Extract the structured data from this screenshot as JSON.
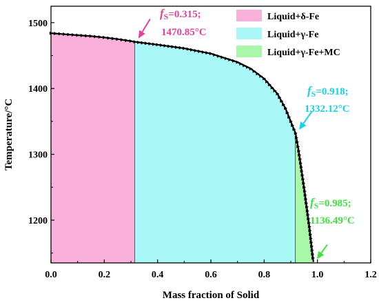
{
  "chart_data": {
    "type": "area",
    "xlabel": "Mass fraction of Solid",
    "ylabel": "Temperature/°C",
    "xlim": [
      0.0,
      1.2
    ],
    "ylim": [
      1135,
      1525
    ],
    "xticks": [
      0.0,
      0.2,
      0.4,
      0.6,
      0.8,
      1.0,
      1.2
    ],
    "xtick_labels": [
      "0.0",
      "0.2",
      "0.4",
      "0.6",
      "0.8",
      "1.0",
      "1.2"
    ],
    "yticks": [
      1200,
      1300,
      1400,
      1500
    ],
    "ytick_labels": [
      "1200",
      "1300",
      "1400",
      "1500"
    ],
    "grid": false,
    "legend_position": "top-right",
    "series": [
      {
        "name": "Liquid+δ-Fe",
        "color": "#f9b0da",
        "x": [
          0.0,
          0.05,
          0.1,
          0.15,
          0.2,
          0.25,
          0.3,
          0.315
        ],
        "y": [
          1484,
          1482.5,
          1481,
          1479.5,
          1477.5,
          1475,
          1472,
          1470.85
        ]
      },
      {
        "name": "Liquid+γ-Fe",
        "color": "#aaf7f7",
        "x": [
          0.315,
          0.4,
          0.5,
          0.6,
          0.7,
          0.75,
          0.8,
          0.85,
          0.88,
          0.9,
          0.918
        ],
        "y": [
          1470.85,
          1466.5,
          1461,
          1453,
          1440,
          1430,
          1415,
          1392,
          1370,
          1350,
          1332.12
        ]
      },
      {
        "name": "Liquid+γ-Fe+MC",
        "color": "#a9f7a9",
        "x": [
          0.918,
          0.93,
          0.95,
          0.97,
          0.985
        ],
        "y": [
          1332.12,
          1305,
          1250,
          1190,
          1136.49
        ]
      }
    ],
    "annotations": [
      {
        "fs_label": "=0.315;",
        "temp_label": "1470.85°C",
        "color": "#e8409a",
        "x": 0.315,
        "y": 1470.85
      },
      {
        "fs_label": "=0.918;",
        "temp_label": "1332.12°C",
        "color": "#14d4e8",
        "x": 0.918,
        "y": 1332.12
      },
      {
        "fs_label": "=0.985;",
        "temp_label": "1136.49°C",
        "color": "#3fe33f",
        "x": 0.985,
        "y": 1136.49
      }
    ],
    "annotation_symbol": "f",
    "annotation_subscript": "S"
  }
}
